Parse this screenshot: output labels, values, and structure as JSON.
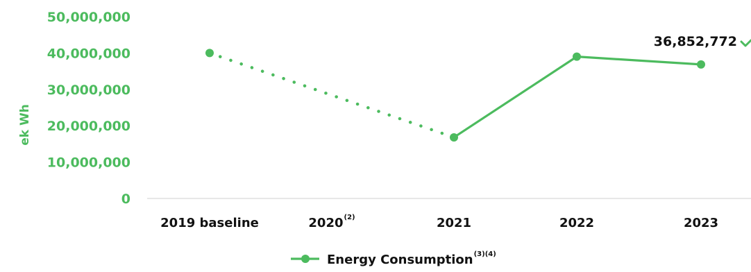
{
  "chart_data": {
    "type": "line",
    "categories": [
      "2019 baseline",
      "2020",
      "2021",
      "2022",
      "2023"
    ],
    "category_superscripts": [
      "",
      "(2)",
      "",
      "",
      ""
    ],
    "ylabel": "ek Wh",
    "ylim": [
      0,
      50000000
    ],
    "yticks": [
      0,
      10000000,
      20000000,
      30000000,
      40000000,
      50000000
    ],
    "ytick_labels": [
      "0",
      "10,000,000",
      "20,000,000",
      "30,000,000",
      "40,000,000",
      "50,000,000"
    ],
    "grid": false,
    "legend_position": "bottom",
    "series": [
      {
        "name": "Energy Consumption",
        "name_superscript": "(3)(4)",
        "color": "#4CBB5E",
        "points": [
          {
            "category": "2019 baseline",
            "value": 40000000
          },
          {
            "category": "2021",
            "value": 16800000
          },
          {
            "category": "2022",
            "value": 39000000
          },
          {
            "category": "2023",
            "value": 36852772
          }
        ],
        "dotted_segment": [
          "2019 baseline",
          "2021"
        ]
      }
    ],
    "data_labels": [
      {
        "category": "2023",
        "text": "36,852,772"
      }
    ]
  }
}
